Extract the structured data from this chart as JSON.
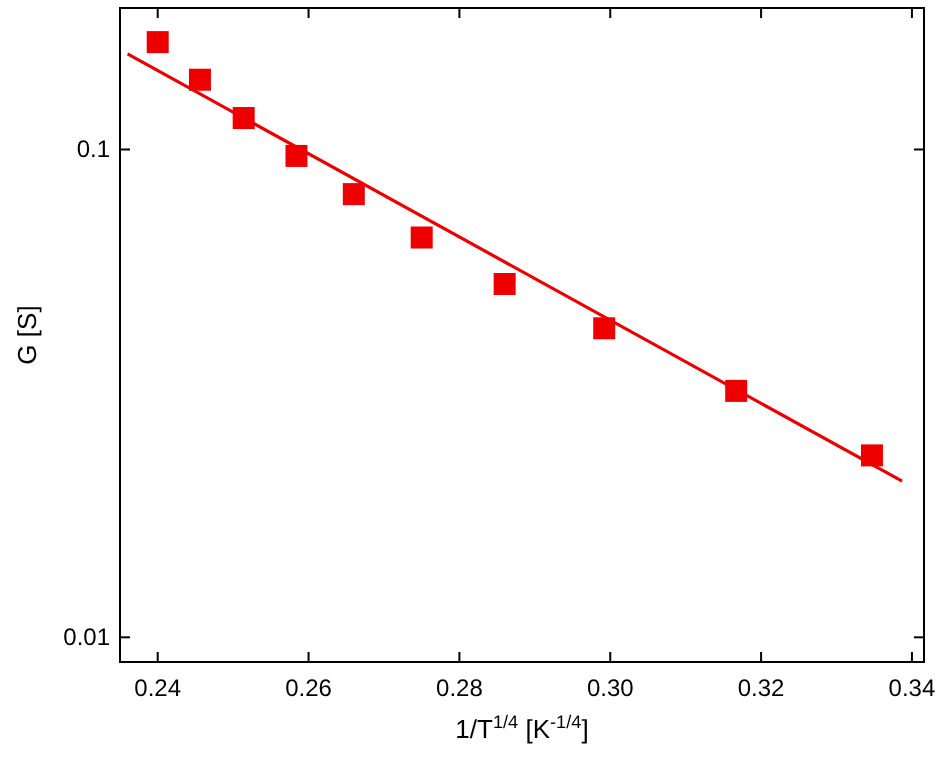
{
  "chart_data": {
    "type": "scatter",
    "xlabel": "1/T$^{1/4}$ [K$^{-1/4}$]",
    "ylabel": "G [S]",
    "log": "y",
    "xlim": [
      0.235,
      0.3416
    ],
    "ylim": [
      0.0089,
      0.195
    ],
    "xticks": [
      {
        "value": 0.24,
        "label": "0.24"
      },
      {
        "value": 0.26,
        "label": "0.26"
      },
      {
        "value": 0.28,
        "label": "0.28"
      },
      {
        "value": 0.3,
        "label": "0.30"
      },
      {
        "value": 0.32,
        "label": "0.32"
      },
      {
        "value": 0.34,
        "label": "0.34"
      }
    ],
    "yticks": [
      0.01,
      0.1
    ],
    "grid": false,
    "series": [
      {
        "color": "#ee0000",
        "marker": "square",
        "x": [
          0.24,
          0.2456,
          0.2514,
          0.2584,
          0.266,
          0.275,
          0.286,
          0.2992,
          0.3167,
          0.3347
        ],
        "values": [
          0.166,
          0.139,
          0.116,
          0.097,
          0.081,
          0.066,
          0.053,
          0.043,
          0.032,
          0.0236
        ]
      },
      {
        "type": "line",
        "color": "#ee0000",
        "line_style": "solid",
        "x": [
          0.236,
          0.3387
        ],
        "values": [
          0.157,
          0.0209
        ]
      }
    ]
  }
}
